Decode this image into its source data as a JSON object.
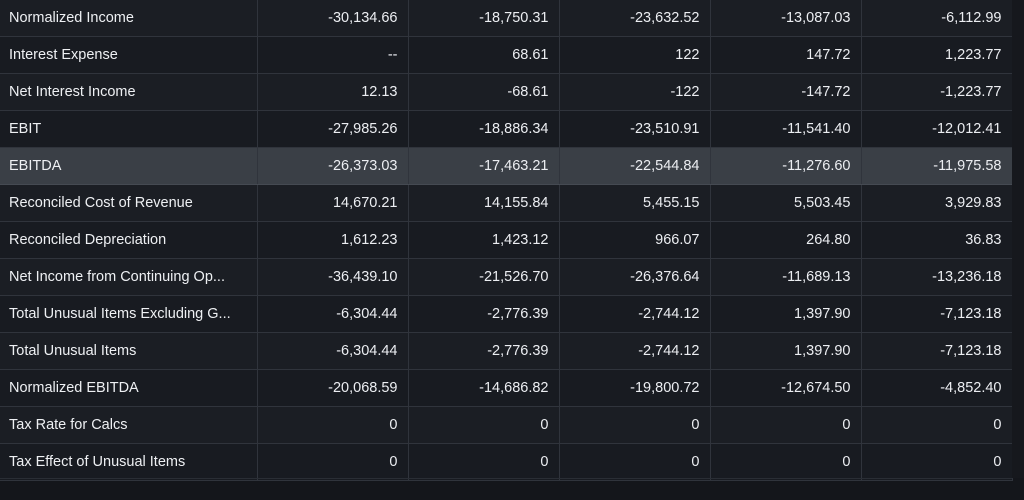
{
  "rows": [
    {
      "label": "Normalized Income",
      "values": [
        "-30,134.66",
        "-18,750.31",
        "-23,632.52",
        "-13,087.03",
        "-6,112.99"
      ]
    },
    {
      "label": "Interest Expense",
      "values": [
        "--",
        "68.61",
        "122",
        "147.72",
        "1,223.77"
      ]
    },
    {
      "label": "Net Interest Income",
      "values": [
        "12.13",
        "-68.61",
        "-122",
        "-147.72",
        "-1,223.77"
      ]
    },
    {
      "label": "EBIT",
      "values": [
        "-27,985.26",
        "-18,886.34",
        "-23,510.91",
        "-11,541.40",
        "-12,012.41"
      ]
    },
    {
      "label": "EBITDA",
      "values": [
        "-26,373.03",
        "-17,463.21",
        "-22,544.84",
        "-11,276.60",
        "-11,975.58"
      ]
    },
    {
      "label": "Reconciled Cost of Revenue",
      "values": [
        "14,670.21",
        "14,155.84",
        "5,455.15",
        "5,503.45",
        "3,929.83"
      ]
    },
    {
      "label": "Reconciled Depreciation",
      "values": [
        "1,612.23",
        "1,423.12",
        "966.07",
        "264.80",
        "36.83"
      ]
    },
    {
      "label": "Net Income from Continuing Op...",
      "values": [
        "-36,439.10",
        "-21,526.70",
        "-26,376.64",
        "-11,689.13",
        "-13,236.18"
      ]
    },
    {
      "label": "Total Unusual Items Excluding G...",
      "values": [
        "-6,304.44",
        "-2,776.39",
        "-2,744.12",
        "1,397.90",
        "-7,123.18"
      ]
    },
    {
      "label": "Total Unusual Items",
      "values": [
        "-6,304.44",
        "-2,776.39",
        "-2,744.12",
        "1,397.90",
        "-7,123.18"
      ]
    },
    {
      "label": "Normalized EBITDA",
      "values": [
        "-20,068.59",
        "-14,686.82",
        "-19,800.72",
        "-12,674.50",
        "-4,852.40"
      ]
    },
    {
      "label": "Tax Rate for Calcs",
      "values": [
        "0",
        "0",
        "0",
        "0",
        "0"
      ]
    },
    {
      "label": "Tax Effect of Unusual Items",
      "values": [
        "0",
        "0",
        "0",
        "0",
        "0"
      ]
    }
  ],
  "highlighted_row": "EBITDA"
}
